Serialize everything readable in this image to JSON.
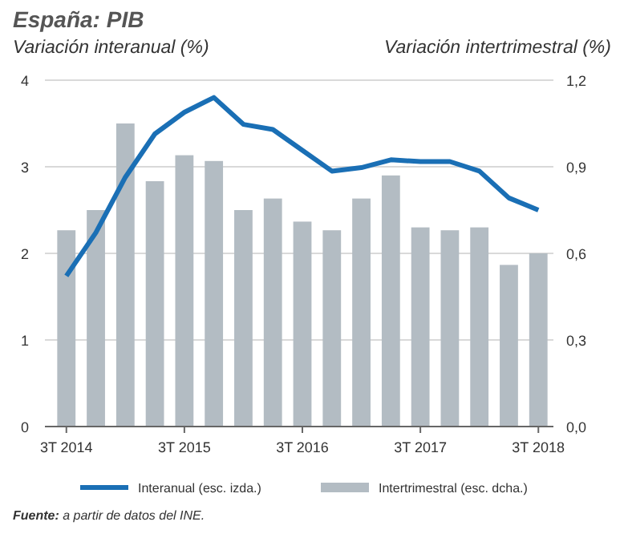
{
  "chart_data": {
    "type": "bar",
    "title": "España: PIB",
    "ylabel": "Variación interanual (%)",
    "y2label": "Variación intertrimestral (%)",
    "categories": [
      "3T 2014",
      null,
      null,
      null,
      "3T 2015",
      null,
      null,
      null,
      "3T 2016",
      null,
      null,
      null,
      "3T 2017",
      null,
      null,
      null,
      "3T 2018"
    ],
    "series": [
      {
        "name": "Interanual (esc. izda.)",
        "type": "line",
        "color": "#1a6fb5",
        "values": [
          1.74,
          2.24,
          2.88,
          3.38,
          3.63,
          3.8,
          3.49,
          3.43,
          3.19,
          2.95,
          2.99,
          3.08,
          3.06,
          3.06,
          2.95,
          2.64,
          2.5
        ]
      },
      {
        "name": "Intertrimestral (esc. dcha.)",
        "axis": "y2",
        "color": "#b3bcc3",
        "values": [
          0.68,
          0.75,
          1.05,
          0.85,
          0.94,
          0.92,
          0.75,
          0.79,
          0.71,
          0.68,
          0.79,
          0.87,
          0.69,
          0.68,
          0.69,
          0.56,
          0.6
        ]
      }
    ],
    "ylim": [
      0,
      4
    ],
    "yticks": [
      0,
      1,
      2,
      3,
      4
    ],
    "y2lim": [
      0,
      1.2
    ],
    "y2ticks": [
      {
        "value": 0,
        "label": "0,0"
      },
      {
        "value": 0.3,
        "label": "0,3"
      },
      {
        "value": 0.6,
        "label": "0,6"
      },
      {
        "value": 0.9,
        "label": "0,9"
      },
      {
        "value": 1.2,
        "label": "1,2"
      }
    ],
    "grid": "y",
    "legend": "bottom",
    "annotations": [
      "Fuente: a partir de datos del INE."
    ]
  }
}
